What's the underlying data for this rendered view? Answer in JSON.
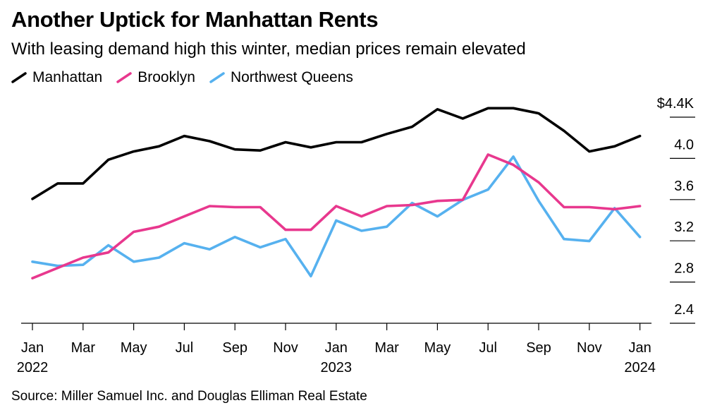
{
  "title": "Another Uptick for Manhattan Rents",
  "subtitle": "With leasing demand high this winter, median prices remain elevated",
  "source": "Source: Miller Samuel Inc. and Douglas Elliman Real Estate",
  "colors": {
    "manhattan": "#000000",
    "brooklyn": "#e8388e",
    "queens": "#56b1ef"
  },
  "chart_data": {
    "type": "line",
    "title": "Another Uptick for Manhattan Rents",
    "subtitle": "With leasing demand high this winter, median prices remain elevated",
    "x": [
      "2022-01",
      "2022-02",
      "2022-03",
      "2022-04",
      "2022-05",
      "2022-06",
      "2022-07",
      "2022-08",
      "2022-09",
      "2022-10",
      "2022-11",
      "2022-12",
      "2023-01",
      "2023-02",
      "2023-03",
      "2023-04",
      "2023-05",
      "2023-06",
      "2023-07",
      "2023-08",
      "2023-09",
      "2023-10",
      "2023-11",
      "2023-12",
      "2024-01"
    ],
    "x_tick_labels": [
      {
        "month": "Jan",
        "year": "2022"
      },
      {
        "month": "Mar",
        "year": ""
      },
      {
        "month": "May",
        "year": ""
      },
      {
        "month": "Jul",
        "year": ""
      },
      {
        "month": "Sep",
        "year": ""
      },
      {
        "month": "Nov",
        "year": ""
      },
      {
        "month": "Jan",
        "year": "2023"
      },
      {
        "month": "Mar",
        "year": ""
      },
      {
        "month": "May",
        "year": ""
      },
      {
        "month": "Jul",
        "year": ""
      },
      {
        "month": "Sep",
        "year": ""
      },
      {
        "month": "Nov",
        "year": ""
      },
      {
        "month": "Jan",
        "year": "2024"
      }
    ],
    "y_tick_labels": [
      "$4.4K",
      "4.0",
      "3.6",
      "3.2",
      "2.8",
      "2.4"
    ],
    "y_ticks": [
      4.4,
      4.0,
      3.6,
      3.2,
      2.8,
      2.4
    ],
    "ylim": [
      2.4,
      4.4
    ],
    "unit": "$K",
    "grid": false,
    "legend_placement": "top-left",
    "series": [
      {
        "name": "Manhattan",
        "color": "#000000",
        "values": [
          3.47,
          3.62,
          3.62,
          3.85,
          3.93,
          3.98,
          4.08,
          4.03,
          3.95,
          3.94,
          4.02,
          3.97,
          4.02,
          4.02,
          4.1,
          4.17,
          4.34,
          4.25,
          4.35,
          4.35,
          4.3,
          4.13,
          3.93,
          3.98,
          4.08
        ]
      },
      {
        "name": "Brooklyn",
        "color": "#e8388e",
        "values": [
          2.7,
          2.8,
          2.9,
          2.95,
          3.15,
          3.2,
          3.3,
          3.4,
          3.39,
          3.39,
          3.17,
          3.17,
          3.4,
          3.3,
          3.4,
          3.41,
          3.45,
          3.46,
          3.9,
          3.8,
          3.63,
          3.39,
          3.39,
          3.37,
          3.4
        ]
      },
      {
        "name": "Northwest Queens",
        "color": "#56b1ef",
        "values": [
          2.86,
          2.82,
          2.83,
          3.02,
          2.86,
          2.9,
          3.04,
          2.98,
          3.1,
          3.0,
          3.08,
          2.72,
          3.26,
          3.16,
          3.2,
          3.43,
          3.3,
          3.46,
          3.56,
          3.88,
          3.45,
          3.08,
          3.06,
          3.38,
          3.1
        ]
      }
    ]
  }
}
